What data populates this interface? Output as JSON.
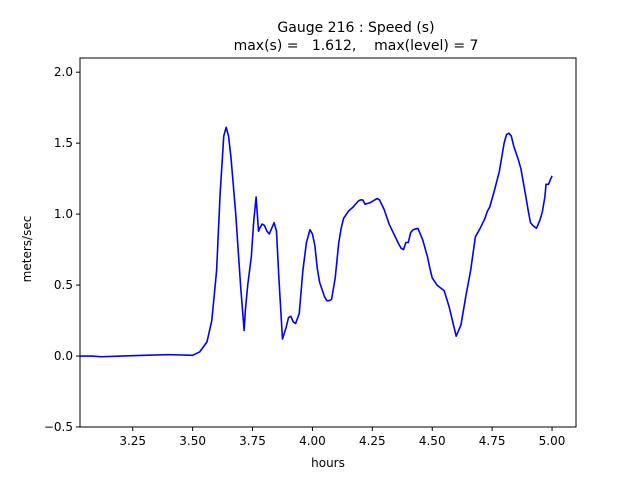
{
  "chart_data": {
    "type": "line",
    "title_line1": "Gauge 216 : Speed (s)",
    "title_line2": "max(s) =   1.612,    max(level) = 7",
    "xlabel": "hours",
    "ylabel": "meters/sec",
    "xlim": [
      3.03,
      5.1
    ],
    "ylim": [
      -0.5,
      2.1
    ],
    "x_ticks": [
      3.25,
      3.5,
      3.75,
      4.0,
      4.25,
      4.5,
      4.75,
      5.0
    ],
    "x_tick_labels": [
      "3.25",
      "3.50",
      "3.75",
      "4.00",
      "4.25",
      "4.50",
      "4.75",
      "5.00"
    ],
    "y_ticks": [
      -0.5,
      0.0,
      0.5,
      1.0,
      1.5,
      2.0
    ],
    "y_tick_labels": [
      "−0.5",
      "0.0",
      "0.5",
      "1.0",
      "1.5",
      "2.0"
    ],
    "grid": false,
    "series": [
      {
        "color": "#0000ff",
        "x": [
          3.03,
          3.08,
          3.12,
          3.2,
          3.3,
          3.4,
          3.5,
          3.53,
          3.56,
          3.58,
          3.6,
          3.615,
          3.63,
          3.64,
          3.65,
          3.66,
          3.68,
          3.7,
          3.715,
          3.72,
          3.73,
          3.745,
          3.755,
          3.765,
          3.775,
          3.78,
          3.79,
          3.8,
          3.81,
          3.82,
          3.83,
          3.84,
          3.85,
          3.86,
          3.875,
          3.89,
          3.9,
          3.91,
          3.92,
          3.93,
          3.945,
          3.96,
          3.975,
          3.99,
          4.0,
          4.01,
          4.02,
          4.03,
          4.05,
          4.06,
          4.07,
          4.08,
          4.095,
          4.11,
          4.12,
          4.13,
          4.15,
          4.17,
          4.19,
          4.2,
          4.21,
          4.22,
          4.24,
          4.26,
          4.27,
          4.28,
          4.3,
          4.32,
          4.34,
          4.36,
          4.37,
          4.38,
          4.39,
          4.4,
          4.41,
          4.42,
          4.44,
          4.46,
          4.48,
          4.49,
          4.5,
          4.52,
          4.55,
          4.57,
          4.6,
          4.62,
          4.64,
          4.66,
          4.67,
          4.68,
          4.7,
          4.72,
          4.73,
          4.74,
          4.76,
          4.78,
          4.8,
          4.81,
          4.82,
          4.83,
          4.84,
          4.86,
          4.87,
          4.89,
          4.9,
          4.91,
          4.92,
          4.935,
          4.95,
          4.96,
          4.97,
          4.975,
          4.985,
          4.99,
          5.0
        ],
        "y": [
          0.0,
          0.0,
          -0.005,
          0.0,
          0.005,
          0.01,
          0.005,
          0.03,
          0.1,
          0.25,
          0.6,
          1.15,
          1.55,
          1.612,
          1.55,
          1.4,
          1.0,
          0.5,
          0.18,
          0.32,
          0.5,
          0.7,
          0.95,
          1.12,
          0.88,
          0.9,
          0.93,
          0.92,
          0.88,
          0.86,
          0.9,
          0.94,
          0.88,
          0.55,
          0.12,
          0.2,
          0.27,
          0.28,
          0.24,
          0.23,
          0.3,
          0.6,
          0.8,
          0.89,
          0.86,
          0.78,
          0.62,
          0.52,
          0.42,
          0.39,
          0.39,
          0.4,
          0.55,
          0.8,
          0.9,
          0.97,
          1.02,
          1.05,
          1.09,
          1.1,
          1.1,
          1.07,
          1.08,
          1.1,
          1.11,
          1.1,
          1.03,
          0.93,
          0.86,
          0.79,
          0.76,
          0.75,
          0.8,
          0.8,
          0.87,
          0.89,
          0.9,
          0.82,
          0.7,
          0.62,
          0.55,
          0.5,
          0.46,
          0.35,
          0.14,
          0.22,
          0.42,
          0.6,
          0.72,
          0.84,
          0.9,
          0.97,
          1.02,
          1.05,
          1.17,
          1.3,
          1.5,
          1.56,
          1.57,
          1.55,
          1.48,
          1.38,
          1.32,
          1.13,
          1.03,
          0.94,
          0.92,
          0.9,
          0.96,
          1.02,
          1.12,
          1.21,
          1.21,
          1.23,
          1.27
        ]
      }
    ]
  }
}
